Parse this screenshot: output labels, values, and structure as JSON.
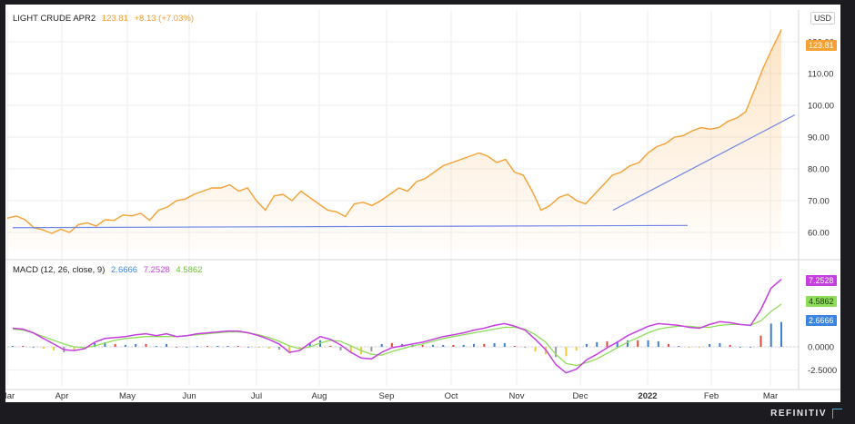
{
  "price_legend": {
    "symbol": "LIGHT CRUDE APR2",
    "last": "123.81",
    "change": "+8.13 (+7.03%)"
  },
  "macd_legend": {
    "label": "MACD (12, 26, close, 9)",
    "v1": "2.6666",
    "v2": "7.2528",
    "v3": "4.5862"
  },
  "currency_button": "USD",
  "brand": "REFINITIV",
  "colors": {
    "price": "#f7a034",
    "trend": "#6f86e8",
    "macd": "#c53fe0",
    "signal": "#8fdc5a",
    "hist_pos": "#3d7fd0",
    "hist_neg": "#f0c93a",
    "hist_red": "#e2493d",
    "tag_blue": "#3b84e0"
  },
  "chart_data": [
    {
      "type": "line",
      "title": "LIGHT CRUDE APR2",
      "x_labels": [
        "Mar",
        "Apr",
        "May",
        "Jun",
        "Jul",
        "Aug",
        "Sep",
        "Oct",
        "Nov",
        "Dec",
        "2022",
        "Feb",
        "Mar"
      ],
      "y_ticks": [
        "120.00",
        "110.00",
        "100.00",
        "90.00",
        "80.00",
        "70.00",
        "60.00"
      ],
      "ylim": [
        54,
        126
      ],
      "last_tag": "123.81",
      "series": [
        {
          "values": [
            64.5,
            65.2,
            64,
            61.5,
            60.8,
            59.7,
            61,
            60,
            62.5,
            63,
            62,
            64,
            63.8,
            65.5,
            65.2,
            66,
            63.8,
            67,
            68,
            70,
            70.5,
            72,
            73,
            74,
            74,
            75,
            73,
            74,
            70,
            67,
            71.5,
            72,
            70,
            73,
            71,
            69,
            67,
            66.5,
            65,
            69,
            69.5,
            68.5,
            70,
            72,
            74,
            73,
            76,
            77,
            79,
            81,
            82,
            83,
            84,
            85,
            84,
            82,
            83,
            79,
            78,
            73,
            67,
            68.5,
            71,
            72,
            70,
            69,
            72,
            75,
            78,
            79,
            81,
            82,
            85,
            87,
            88,
            90,
            90.5,
            92,
            93,
            92.5,
            93,
            95,
            96,
            98,
            105,
            112,
            118,
            123.81
          ]
        }
      ],
      "trendlines": [
        {
          "from": [
            "Mar",
            61.5
          ],
          "to": [
            "Feb",
            62.2
          ]
        },
        {
          "from": [
            "Dec",
            67
          ],
          "to": [
            "Mar",
            97
          ]
        }
      ]
    },
    {
      "type": "line",
      "title": "MACD (12, 26, close, 9)",
      "y_ticks": [
        "0.0000",
        "-2.5000"
      ],
      "ylim": [
        -4,
        8
      ],
      "tags": [
        "7.2528",
        "4.5862",
        "2.6666"
      ],
      "series": [
        {
          "name": "MACD",
          "values": [
            2,
            1.9,
            1.5,
            0.9,
            0.3,
            -0.3,
            -0.4,
            -0.2,
            0.5,
            0.9,
            1,
            1.1,
            1.3,
            1.4,
            1.2,
            1.4,
            1.1,
            1.2,
            1.4,
            1.5,
            1.6,
            1.7,
            1.7,
            1.5,
            1.2,
            0.8,
            0.3,
            -0.6,
            -0.4,
            0.4,
            1.1,
            0.8,
            0.2,
            -0.6,
            -1.2,
            -1.3,
            -0.6,
            -0.1,
            0.1,
            0.3,
            0.5,
            0.8,
            1.1,
            1.3,
            1.5,
            1.8,
            2,
            2.3,
            2.5,
            2.2,
            1.8,
            0.8,
            -0.3,
            -1.9,
            -2.8,
            -2.4,
            -1.4,
            -0.8,
            -0.1,
            0.5,
            1.2,
            1.7,
            2.2,
            2.5,
            2.4,
            2.3,
            2.1,
            2,
            2.4,
            2.7,
            2.6,
            2.4,
            2.3,
            4,
            6.3,
            7.2528
          ]
        },
        {
          "name": "Signal",
          "values": [
            1.9,
            1.8,
            1.5,
            1.1,
            0.7,
            0.3,
            0,
            -0.1,
            0.1,
            0.4,
            0.7,
            0.9,
            1,
            1.1,
            1.1,
            1.1,
            1.1,
            1.2,
            1.3,
            1.4,
            1.5,
            1.6,
            1.6,
            1.5,
            1.3,
            1,
            0.6,
            0.1,
            -0.2,
            0,
            0.4,
            0.7,
            0.6,
            0.1,
            -0.4,
            -0.8,
            -0.9,
            -0.5,
            -0.2,
            0.1,
            0.3,
            0.6,
            0.9,
            1.1,
            1.3,
            1.5,
            1.7,
            1.9,
            2.1,
            2.1,
            1.9,
            1.3,
            0.5,
            -0.8,
            -1.8,
            -2,
            -1.7,
            -1.3,
            -0.7,
            -0.1,
            0.5,
            1,
            1.5,
            1.9,
            2.1,
            2.2,
            2.2,
            2.1,
            2.1,
            2.3,
            2.4,
            2.4,
            2.3,
            2.8,
            3.8,
            4.5862
          ]
        },
        {
          "name": "Histogram",
          "values": [
            0.1,
            0.1,
            0,
            -0.2,
            -0.4,
            -0.6,
            -0.4,
            -0.1,
            0.4,
            0.5,
            0.3,
            0.2,
            0.3,
            0.3,
            0.1,
            0.3,
            0,
            0,
            0.1,
            0.1,
            0.1,
            0.1,
            0.1,
            0,
            -0.1,
            -0.2,
            -0.3,
            -0.7,
            -0.2,
            0.4,
            0.7,
            0.1,
            -0.4,
            -0.7,
            -0.8,
            -0.5,
            0.3,
            0.4,
            0.3,
            0.2,
            0.2,
            0.2,
            0.2,
            0.2,
            0.2,
            0.3,
            0.3,
            0.4,
            0.4,
            0.1,
            -0.1,
            -0.5,
            -0.8,
            -1.1,
            -1,
            -0.4,
            0.3,
            0.5,
            0.6,
            0.6,
            0.7,
            0.7,
            0.7,
            0.6,
            0.3,
            0.1,
            -0.1,
            -0.1,
            0.3,
            0.4,
            0.2,
            0,
            0,
            1.2,
            2.5,
            2.6666
          ]
        }
      ]
    }
  ]
}
